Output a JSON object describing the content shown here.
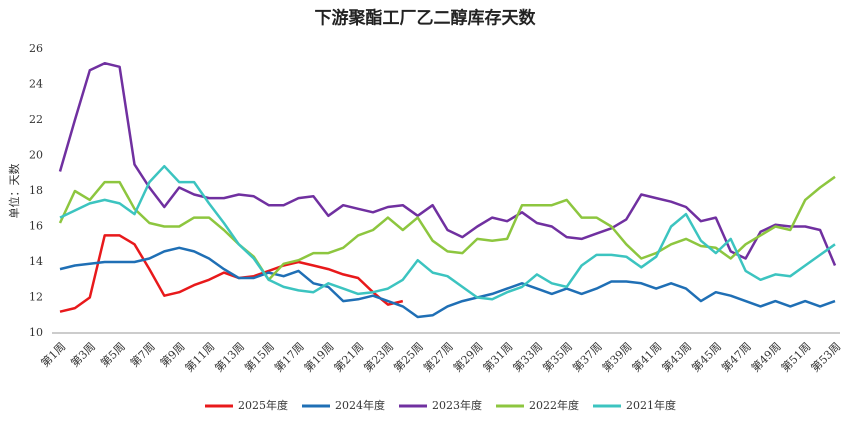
{
  "chart_data": {
    "type": "line",
    "title": "下游聚酯工厂乙二醇库存天数",
    "y_label": "单位：天数",
    "categories": [
      "第1周",
      null,
      "第3周",
      null,
      "第5周",
      null,
      "第7周",
      null,
      "第9周",
      null,
      "第11周",
      null,
      "第13周",
      null,
      "第15周",
      null,
      "第17周",
      null,
      "第19周",
      null,
      "第21周",
      null,
      "第23周",
      null,
      "第25周",
      null,
      "第27周",
      null,
      "第29周",
      null,
      "第31周",
      null,
      "第33周",
      null,
      "第35周",
      null,
      "第37周",
      null,
      "第39周",
      null,
      "第41周",
      null,
      "第43周",
      null,
      "第45周",
      null,
      "第47周",
      null,
      "第49周",
      null,
      "第51周",
      null,
      "第53周"
    ],
    "ylim": [
      10,
      26
    ],
    "yticks": [
      10,
      12,
      14,
      16,
      18,
      20,
      22,
      24,
      26
    ],
    "grid": false,
    "legend": "bottom",
    "series": [
      {
        "name": "2025年度",
        "color": "#e8191b",
        "values": [
          11.2,
          11.4,
          12.0,
          15.5,
          15.5,
          15.0,
          13.6,
          12.1,
          12.3,
          12.7,
          13.0,
          13.4,
          13.1,
          13.2,
          13.5,
          13.8,
          14.0,
          13.8,
          13.6,
          13.3,
          13.1,
          12.3,
          11.6,
          11.8,
          null,
          null,
          null,
          null,
          null,
          null,
          null,
          null,
          null,
          null,
          null,
          null,
          null,
          null,
          null,
          null,
          null,
          null,
          null,
          null,
          null,
          null,
          null,
          null,
          null,
          null,
          null,
          null,
          null
        ]
      },
      {
        "name": "2024年度",
        "color": "#1f6fb5",
        "values": [
          13.6,
          13.8,
          13.9,
          14.0,
          14.0,
          14.0,
          14.2,
          14.6,
          14.8,
          14.6,
          14.2,
          13.6,
          13.1,
          13.1,
          13.4,
          13.2,
          13.5,
          12.8,
          12.6,
          11.8,
          11.9,
          12.1,
          11.8,
          11.5,
          10.9,
          11.0,
          11.5,
          11.8,
          12.0,
          12.2,
          12.5,
          12.8,
          12.5,
          12.2,
          12.5,
          12.2,
          12.5,
          12.9,
          12.9,
          12.8,
          12.5,
          12.8,
          12.5,
          11.8,
          12.3,
          12.1,
          11.8,
          11.5,
          11.8,
          11.5,
          11.8,
          11.5,
          11.8
        ]
      },
      {
        "name": "2023年度",
        "color": "#7030a0",
        "values": [
          19.1,
          22.0,
          24.8,
          25.2,
          25.0,
          19.5,
          18.2,
          17.1,
          18.2,
          17.8,
          17.6,
          17.6,
          17.8,
          17.7,
          17.2,
          17.2,
          17.6,
          17.7,
          16.6,
          17.2,
          17.0,
          16.8,
          17.1,
          17.2,
          16.6,
          17.2,
          15.8,
          15.4,
          16.0,
          16.5,
          16.3,
          16.8,
          16.2,
          16.0,
          15.4,
          15.3,
          15.6,
          15.9,
          16.4,
          17.8,
          17.6,
          17.4,
          17.1,
          16.3,
          16.5,
          14.6,
          14.2,
          15.7,
          16.1,
          16.0,
          16.0,
          15.8,
          13.8
        ]
      },
      {
        "name": "2022年度",
        "color": "#8dc63f",
        "values": [
          16.2,
          18.0,
          17.5,
          18.5,
          18.5,
          17.0,
          16.2,
          16.0,
          16.0,
          16.5,
          16.5,
          15.8,
          15.0,
          14.3,
          13.0,
          13.9,
          14.1,
          14.5,
          14.5,
          14.8,
          15.5,
          15.8,
          16.5,
          15.8,
          16.5,
          15.2,
          14.6,
          14.5,
          15.3,
          15.2,
          15.3,
          17.2,
          17.2,
          17.2,
          17.5,
          16.5,
          16.5,
          16.0,
          15.0,
          14.2,
          14.5,
          15.0,
          15.3,
          14.9,
          14.8,
          14.2,
          15.0,
          15.5,
          16.0,
          15.8,
          17.5,
          18.2,
          18.8
        ]
      },
      {
        "name": "2021年度",
        "color": "#3cc4c0",
        "values": [
          16.5,
          16.9,
          17.3,
          17.5,
          17.3,
          16.7,
          18.5,
          19.4,
          18.5,
          18.5,
          17.3,
          16.2,
          15.0,
          14.2,
          13.0,
          12.6,
          12.4,
          12.3,
          12.8,
          12.5,
          12.2,
          12.3,
          12.5,
          13.0,
          14.1,
          13.4,
          13.2,
          12.6,
          12.0,
          11.9,
          12.3,
          12.6,
          13.3,
          12.8,
          12.6,
          13.8,
          14.4,
          14.4,
          14.3,
          13.7,
          14.3,
          16.0,
          16.7,
          15.2,
          14.5,
          15.3,
          13.5,
          13.0,
          13.3,
          13.2,
          13.8,
          14.4,
          15.0
        ]
      }
    ]
  }
}
